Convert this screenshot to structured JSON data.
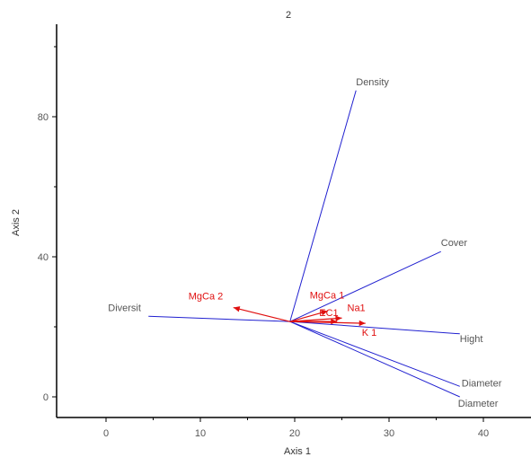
{
  "chart_data": {
    "type": "biplot",
    "title": "2",
    "xlabel": "Axis 1",
    "ylabel": "Axis 2",
    "xlim": [
      -5,
      42
    ],
    "ylim": [
      -6,
      106
    ],
    "xticks": [
      0,
      10,
      20,
      30,
      40
    ],
    "yticks": [
      0,
      40,
      80
    ],
    "x_minor_ticks": [
      5,
      15,
      25,
      35
    ],
    "y_minor_ticks": [
      20,
      60,
      100
    ],
    "origin": [
      19.5,
      21.5
    ],
    "colors": {
      "blue": "#2020d0",
      "red": "#e01010",
      "axis": "#000000"
    },
    "blue_vectors": [
      {
        "name": "Density",
        "end": [
          26.5,
          87.5
        ]
      },
      {
        "name": "Cover",
        "end": [
          35.5,
          41.5
        ]
      },
      {
        "name": "Hight",
        "end": [
          37.5,
          18.0
        ]
      },
      {
        "name": "Diameter",
        "end": [
          37.5,
          3.0
        ]
      },
      {
        "name": "Diameter",
        "end": [
          37.5,
          0.0
        ]
      },
      {
        "name": "Diversit",
        "end": [
          4.5,
          23.0
        ]
      }
    ],
    "red_vectors": [
      {
        "name": "MgCa 2",
        "end": [
          13.5,
          25.5
        ]
      },
      {
        "name": "MgCa 1",
        "end": [
          23.5,
          24.5
        ]
      },
      {
        "name": "Na1",
        "end": [
          25.0,
          22.5
        ]
      },
      {
        "name": "EC1",
        "end": [
          24.5,
          21.5
        ]
      },
      {
        "name": "K 1",
        "end": [
          27.5,
          21.0
        ]
      }
    ]
  }
}
